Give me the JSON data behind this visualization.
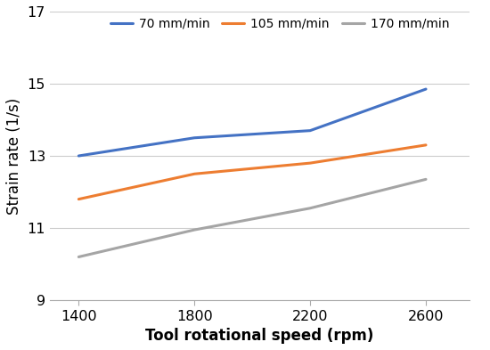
{
  "x": [
    1400,
    1800,
    2200,
    2600
  ],
  "series": [
    {
      "label": "70 mm/min",
      "color": "#4472C4",
      "values": [
        13.0,
        13.5,
        13.7,
        14.85
      ]
    },
    {
      "label": "105 mm/min",
      "color": "#ED7D31",
      "values": [
        11.8,
        12.5,
        12.8,
        13.3
      ]
    },
    {
      "label": "170 mm/min",
      "color": "#A5A5A5",
      "values": [
        10.2,
        10.95,
        11.55,
        12.35
      ]
    }
  ],
  "xlabel": "Tool rotational speed (rpm)",
  "ylabel": "Strain rate (1/s)",
  "xlim": [
    1300,
    2750
  ],
  "ylim": [
    9,
    17
  ],
  "yticks": [
    9,
    11,
    13,
    15,
    17
  ],
  "xticks": [
    1400,
    1800,
    2200,
    2600
  ],
  "background_color": "#ffffff",
  "grid_color": "#cccccc",
  "linewidth": 2.2,
  "legend_fontsize": 10,
  "axis_label_fontsize": 12,
  "tick_fontsize": 11.5
}
